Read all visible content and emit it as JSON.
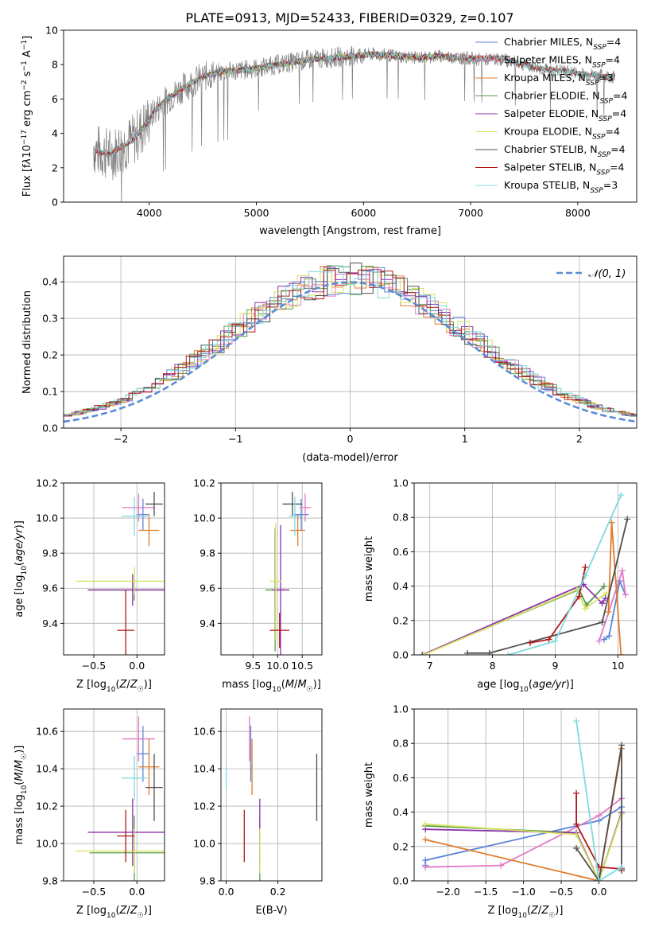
{
  "figure": {
    "title": "PLATE=0913, MJD=52433, FIBERID=0329, z=0.107"
  },
  "colors": {
    "chabrier_miles": "#5b84d8",
    "salpeter_miles": "#e178c5",
    "kroupa_miles": "#e07b2b",
    "chabrier_elodie": "#5a9a4a",
    "salpeter_elodie": "#8c32ad",
    "kroupa_elodie": "#d7e35e",
    "chabrier_stelib": "#505050",
    "salpeter_stelib": "#b21818",
    "kroupa_stelib": "#7fd9de",
    "data_gray": "#808080",
    "normal_curve": "#5b8bd6",
    "grid": "#b0b0b0"
  },
  "chart_data": [
    {
      "id": "spectrum",
      "type": "line",
      "xlabel": "wavelength [Angstrom, rest frame]",
      "ylabel": "Flux [f_λ10^-17 erg cm^-2 s^-1 A^-1]",
      "xlim": [
        3200,
        8550
      ],
      "ylim": [
        0,
        10
      ],
      "xticks": [
        4000,
        5000,
        6000,
        7000,
        8000
      ],
      "yticks": [
        0,
        2,
        4,
        6,
        8,
        10
      ],
      "grid": false,
      "legend_position": "right",
      "legend": [
        "Chabrier MILES, N_SSP=4",
        "Salpeter MILES, N_SSP=4",
        "Kroupa MILES, N_SSP=3",
        "Chabrier ELODIE, N_SSP=4",
        "Salpeter ELODIE, N_SSP=4",
        "Kroupa ELODIE, N_SSP=4",
        "Chabrier STELIB, N_SSP=4",
        "Salpeter STELIB, N_SSP=4",
        "Kroupa STELIB, N_SSP=3"
      ],
      "continuum": [
        [
          3480,
          3.1
        ],
        [
          3550,
          2.9
        ],
        [
          3650,
          2.8
        ],
        [
          3750,
          3.3
        ],
        [
          3850,
          3.6
        ],
        [
          3950,
          4.4
        ],
        [
          4050,
          5.3
        ],
        [
          4150,
          5.9
        ],
        [
          4300,
          6.6
        ],
        [
          4500,
          7.3
        ],
        [
          4700,
          7.6
        ],
        [
          4900,
          7.7
        ],
        [
          5100,
          7.9
        ],
        [
          5300,
          8.1
        ],
        [
          5500,
          8.3
        ],
        [
          5700,
          8.4
        ],
        [
          5900,
          8.5
        ],
        [
          6100,
          8.6
        ],
        [
          6300,
          8.5
        ],
        [
          6500,
          8.4
        ],
        [
          6700,
          8.5
        ],
        [
          6900,
          8.4
        ],
        [
          7100,
          8.3
        ],
        [
          7300,
          8.3
        ],
        [
          7500,
          8.0
        ],
        [
          7700,
          7.7
        ],
        [
          7900,
          7.6
        ],
        [
          8100,
          7.4
        ],
        [
          8300,
          7.3
        ]
      ],
      "data_range": [
        3480,
        8350
      ],
      "model_ranges": {
        "miles": [
          3500,
          7350
        ],
        "elodie": [
          3900,
          6800
        ],
        "stelib": [
          3480,
          8350
        ]
      }
    },
    {
      "id": "residual-histogram",
      "type": "line",
      "xlabel": "(data-model)/error",
      "ylabel": "Normed distribution",
      "xlim": [
        -2.5,
        2.5
      ],
      "ylim": [
        0,
        0.47
      ],
      "xticks": [
        -2,
        -1,
        0,
        1,
        2
      ],
      "yticks": [
        0.0,
        0.1,
        0.2,
        0.3,
        0.4
      ],
      "grid": true,
      "legend_position": "top-right",
      "legend": [
        "𝒩(0, 1)"
      ],
      "bin_width": 0.1
    },
    {
      "id": "age-vs-metallicity",
      "type": "scatter",
      "xlabel": "Z [log10(Z/Z☉)]",
      "ylabel": "age [log10(age/yr)]",
      "xlim": [
        -0.85,
        0.32
      ],
      "ylim": [
        9.22,
        10.2
      ],
      "xticks": [
        -0.5,
        0.0
      ],
      "yticks": [
        9.4,
        9.6,
        9.8,
        10.0,
        10.2
      ],
      "grid": true,
      "series": [
        {
          "key": "chabrier_miles",
          "x": 0.07,
          "y": 10.02,
          "xerr": 0.07,
          "yerr": 0.09
        },
        {
          "key": "salpeter_miles",
          "x": 0.02,
          "y": 10.06,
          "xerr": 0.19,
          "yerr": 0.08
        },
        {
          "key": "kroupa_miles",
          "x": 0.14,
          "y": 9.93,
          "xerr": 0.12,
          "yerr": 0.09
        },
        {
          "key": "chabrier_elodie",
          "x": -0.03,
          "y": 9.59,
          "xerr": 0.52,
          "yerr": 0.06
        },
        {
          "key": "salpeter_elodie",
          "x": -0.05,
          "y": 9.59,
          "xerr": 0.52,
          "yerr": 0.09
        },
        {
          "key": "kroupa_elodie",
          "x": -0.03,
          "y": 9.64,
          "xerr": 0.68,
          "yerr": 0.08
        },
        {
          "key": "chabrier_stelib",
          "x": 0.2,
          "y": 10.08,
          "xerr": 0.1,
          "yerr": 0.07
        },
        {
          "key": "salpeter_stelib",
          "x": -0.13,
          "y": 9.36,
          "xerr": 0.1,
          "yerr": 0.23
        },
        {
          "key": "kroupa_stelib",
          "x": -0.03,
          "y": 10.01,
          "xerr": 0.15,
          "yerr": 0.11
        }
      ]
    },
    {
      "id": "age-vs-mass",
      "type": "scatter",
      "xlabel": "mass [log10(M/M☉)]",
      "ylabel": "",
      "xlim": [
        8.85,
        10.9
      ],
      "ylim": [
        9.22,
        10.2
      ],
      "xticks": [
        9.5,
        10.0,
        10.5
      ],
      "yticks": [
        9.4,
        9.6,
        9.8,
        10.0,
        10.2
      ],
      "grid": true,
      "series": [
        {
          "key": "chabrier_miles",
          "x": 10.48,
          "y": 10.02,
          "xerr": 0.15,
          "yerr": 0.09
        },
        {
          "key": "salpeter_miles",
          "x": 10.56,
          "y": 10.06,
          "xerr": 0.12,
          "yerr": 0.08
        },
        {
          "key": "kroupa_miles",
          "x": 10.41,
          "y": 9.93,
          "xerr": 0.15,
          "yerr": 0.09
        },
        {
          "key": "chabrier_elodie",
          "x": 9.95,
          "y": 9.59,
          "xerr": 0.2,
          "yerr": 0.35
        },
        {
          "key": "salpeter_elodie",
          "x": 10.06,
          "y": 9.59,
          "xerr": 0.18,
          "yerr": 0.37
        },
        {
          "key": "kroupa_elodie",
          "x": 9.96,
          "y": 9.64,
          "xerr": 0.12,
          "yerr": 0.33
        },
        {
          "key": "chabrier_stelib",
          "x": 10.3,
          "y": 10.08,
          "xerr": 0.2,
          "yerr": 0.07
        },
        {
          "key": "salpeter_stelib",
          "x": 10.04,
          "y": 9.36,
          "xerr": 0.2,
          "yerr": 0.1
        },
        {
          "key": "kroupa_stelib",
          "x": 10.35,
          "y": 10.01,
          "xerr": 0.12,
          "yerr": 0.11
        }
      ]
    },
    {
      "id": "mass-weight-vs-age",
      "type": "line",
      "xlabel": "age [log10(age/yr)]",
      "ylabel": "mass weight",
      "xlim": [
        6.75,
        10.3
      ],
      "ylim": [
        0,
        1
      ],
      "xticks": [
        7,
        8,
        9,
        10
      ],
      "yticks": [
        0.0,
        0.2,
        0.4,
        0.6,
        0.8,
        1.0
      ],
      "grid": true,
      "series": [
        {
          "key": "chabrier_miles",
          "points": [
            [
              9.78,
              0.09
            ],
            [
              9.86,
              0.11
            ],
            [
              10.03,
              0.43
            ],
            [
              10.12,
              0.35
            ]
          ]
        },
        {
          "key": "salpeter_miles",
          "points": [
            [
              9.7,
              0.08
            ],
            [
              10.07,
              0.49
            ],
            [
              10.12,
              0.35
            ]
          ]
        },
        {
          "key": "kroupa_miles",
          "points": [
            [
              9.85,
              0.25
            ],
            [
              9.9,
              0.77
            ],
            [
              10.05,
              0.0
            ]
          ]
        },
        {
          "key": "chabrier_elodie",
          "points": [
            [
              6.88,
              0.0
            ],
            [
              9.38,
              0.38
            ],
            [
              9.5,
              0.29
            ],
            [
              9.78,
              0.4
            ]
          ]
        },
        {
          "key": "salpeter_elodie",
          "points": [
            [
              6.88,
              0.0
            ],
            [
              9.45,
              0.41
            ],
            [
              9.75,
              0.3
            ],
            [
              9.8,
              0.33
            ]
          ]
        },
        {
          "key": "kroupa_elodie",
          "points": [
            [
              6.9,
              0.0
            ],
            [
              9.35,
              0.38
            ],
            [
              9.48,
              0.27
            ],
            [
              9.82,
              0.36
            ]
          ]
        },
        {
          "key": "chabrier_stelib",
          "points": [
            [
              7.6,
              0.01
            ],
            [
              7.95,
              0.01
            ],
            [
              9.75,
              0.19
            ],
            [
              10.15,
              0.79
            ]
          ]
        },
        {
          "key": "salpeter_stelib",
          "points": [
            [
              8.6,
              0.07
            ],
            [
              8.9,
              0.09
            ],
            [
              9.38,
              0.34
            ],
            [
              9.48,
              0.51
            ]
          ]
        },
        {
          "key": "kroupa_stelib",
          "points": [
            [
              8.25,
              0.0
            ],
            [
              9.0,
              0.08
            ],
            [
              9.48,
              0.46
            ],
            [
              10.05,
              0.93
            ]
          ]
        }
      ]
    },
    {
      "id": "mass-vs-metallicity",
      "type": "scatter",
      "xlabel": "Z [log10(Z/Z☉)]",
      "ylabel": "mass [log10(M/M☉)]",
      "xlim": [
        -0.85,
        0.32
      ],
      "ylim": [
        9.8,
        10.72
      ],
      "xticks": [
        -0.5,
        0.0
      ],
      "yticks": [
        9.8,
        10.0,
        10.2,
        10.4,
        10.6
      ],
      "grid": true,
      "series": [
        {
          "key": "chabrier_miles",
          "x": 0.07,
          "y": 10.48,
          "xerr": 0.07,
          "yerr": 0.15
        },
        {
          "key": "salpeter_miles",
          "x": 0.02,
          "y": 10.56,
          "xerr": 0.19,
          "yerr": 0.12
        },
        {
          "key": "kroupa_miles",
          "x": 0.14,
          "y": 10.41,
          "xerr": 0.12,
          "yerr": 0.15
        },
        {
          "key": "chabrier_elodie",
          "x": -0.03,
          "y": 9.95,
          "xerr": 0.52,
          "yerr": 0.2
        },
        {
          "key": "salpeter_elodie",
          "x": -0.05,
          "y": 10.06,
          "xerr": 0.52,
          "yerr": 0.18
        },
        {
          "key": "kroupa_elodie",
          "x": -0.03,
          "y": 9.96,
          "xerr": 0.68,
          "yerr": 0.12
        },
        {
          "key": "chabrier_stelib",
          "x": 0.2,
          "y": 10.3,
          "xerr": 0.1,
          "yerr": 0.18
        },
        {
          "key": "salpeter_stelib",
          "x": -0.13,
          "y": 10.04,
          "xerr": 0.1,
          "yerr": 0.14
        },
        {
          "key": "kroupa_stelib",
          "x": -0.03,
          "y": 10.35,
          "xerr": 0.15,
          "yerr": 0.12
        }
      ]
    },
    {
      "id": "mass-vs-ebv",
      "type": "scatter",
      "xlabel": "E(B-V)",
      "ylabel": "",
      "xlim": [
        -0.02,
        0.37
      ],
      "ylim": [
        9.8,
        10.72
      ],
      "xticks": [
        0.0,
        0.2
      ],
      "yticks": [
        9.8,
        10.0,
        10.2,
        10.4,
        10.6
      ],
      "grid": true,
      "series": [
        {
          "key": "chabrier_miles",
          "x": 0.095,
          "y": 10.48,
          "xerr": 0.002,
          "yerr": 0.15
        },
        {
          "key": "salpeter_miles",
          "x": 0.09,
          "y": 10.56,
          "xerr": 0.002,
          "yerr": 0.12
        },
        {
          "key": "kroupa_miles",
          "x": 0.1,
          "y": 10.41,
          "xerr": 0.002,
          "yerr": 0.15
        },
        {
          "key": "chabrier_elodie",
          "x": 0.13,
          "y": 9.95,
          "xerr": 0.002,
          "yerr": 0.2
        },
        {
          "key": "salpeter_elodie",
          "x": 0.13,
          "y": 10.06,
          "xerr": 0.002,
          "yerr": 0.18
        },
        {
          "key": "kroupa_elodie",
          "x": 0.13,
          "y": 9.96,
          "xerr": 0.002,
          "yerr": 0.12
        },
        {
          "key": "chabrier_stelib",
          "x": 0.35,
          "y": 10.3,
          "xerr": 0.002,
          "yerr": 0.18
        },
        {
          "key": "salpeter_stelib",
          "x": 0.07,
          "y": 10.04,
          "xerr": 0.002,
          "yerr": 0.14
        },
        {
          "key": "kroupa_stelib",
          "x": 0.0,
          "y": 10.35,
          "xerr": 0.002,
          "yerr": 0.06
        }
      ]
    },
    {
      "id": "mass-weight-vs-metallicity",
      "type": "line",
      "xlabel": "Z [log10(Z/Z☉)]",
      "ylabel": "mass weight",
      "xlim": [
        -2.45,
        0.5
      ],
      "ylim": [
        0,
        1
      ],
      "xticks": [
        -2.0,
        -1.5,
        -1.0,
        -0.5,
        0.0
      ],
      "yticks": [
        0.0,
        0.2,
        0.4,
        0.6,
        0.8,
        1.0
      ],
      "grid": true,
      "series": [
        {
          "key": "chabrier_miles",
          "points": [
            [
              -2.3,
              0.09
            ],
            [
              -2.3,
              0.12
            ],
            [
              0.0,
              0.35
            ],
            [
              0.3,
              0.43
            ]
          ]
        },
        {
          "key": "salpeter_miles",
          "points": [
            [
              -2.3,
              0.08
            ],
            [
              -1.3,
              0.09
            ],
            [
              0.0,
              0.38
            ],
            [
              0.3,
              0.48
            ]
          ]
        },
        {
          "key": "kroupa_miles",
          "points": [
            [
              -2.3,
              0.24
            ],
            [
              0.0,
              0.0
            ],
            [
              0.3,
              0.77
            ]
          ]
        },
        {
          "key": "chabrier_elodie",
          "points": [
            [
              -2.3,
              0.32
            ],
            [
              -0.3,
              0.28
            ],
            [
              0.0,
              0.0
            ],
            [
              0.3,
              0.4
            ]
          ]
        },
        {
          "key": "salpeter_elodie",
          "points": [
            [
              -2.3,
              0.3
            ],
            [
              -0.3,
              0.28
            ],
            [
              0.0,
              0.0
            ],
            [
              0.3,
              0.4
            ]
          ]
        },
        {
          "key": "kroupa_elodie",
          "points": [
            [
              -2.3,
              0.33
            ],
            [
              -0.3,
              0.27
            ],
            [
              0.0,
              0.0
            ],
            [
              0.3,
              0.39
            ]
          ]
        },
        {
          "key": "chabrier_stelib",
          "points": [
            [
              -0.3,
              0.19
            ],
            [
              0.0,
              0.0
            ],
            [
              0.3,
              0.79
            ],
            [
              0.3,
              0.06
            ]
          ]
        },
        {
          "key": "salpeter_stelib",
          "points": [
            [
              -0.3,
              0.51
            ],
            [
              -0.3,
              0.33
            ],
            [
              0.0,
              0.08
            ],
            [
              0.3,
              0.07
            ]
          ]
        },
        {
          "key": "kroupa_stelib",
          "points": [
            [
              -0.3,
              0.93
            ],
            [
              0.0,
              0.0
            ],
            [
              0.3,
              0.08
            ]
          ]
        }
      ]
    }
  ]
}
